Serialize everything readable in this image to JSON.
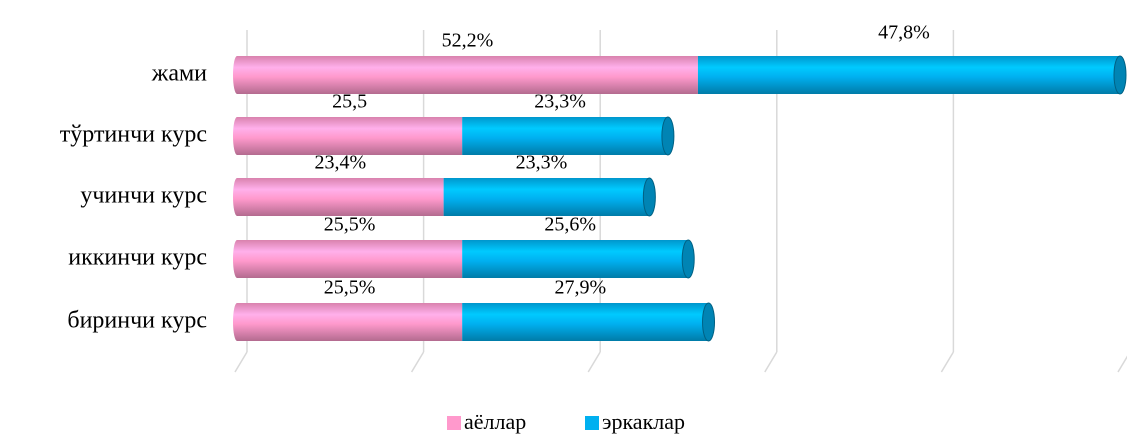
{
  "chart_data": {
    "type": "stacked-bar-horizontal",
    "categories": [
      "жами",
      "тўртинчи курс",
      "учинчи курс",
      "иккинчи курс",
      "биринчи курс"
    ],
    "series": [
      {
        "name": "аёллар",
        "color": "#ff99cc",
        "values": [
          52.2,
          25.5,
          23.4,
          25.5,
          25.5
        ],
        "value_labels": [
          "52,2%",
          "25,5",
          "23,4%",
          "25,5%",
          "25,5%"
        ]
      },
      {
        "name": "эркаклар",
        "color": "#00b0f0",
        "values": [
          47.8,
          23.3,
          23.3,
          25.6,
          27.9
        ],
        "value_labels": [
          "47,8%",
          "23,3%",
          "23,3%",
          "25,6%",
          "27,9%"
        ]
      }
    ],
    "xlim": [
      0,
      100
    ],
    "xticks": [
      0,
      20,
      40,
      60,
      80,
      100
    ],
    "grid": true,
    "legend": "bottom"
  }
}
